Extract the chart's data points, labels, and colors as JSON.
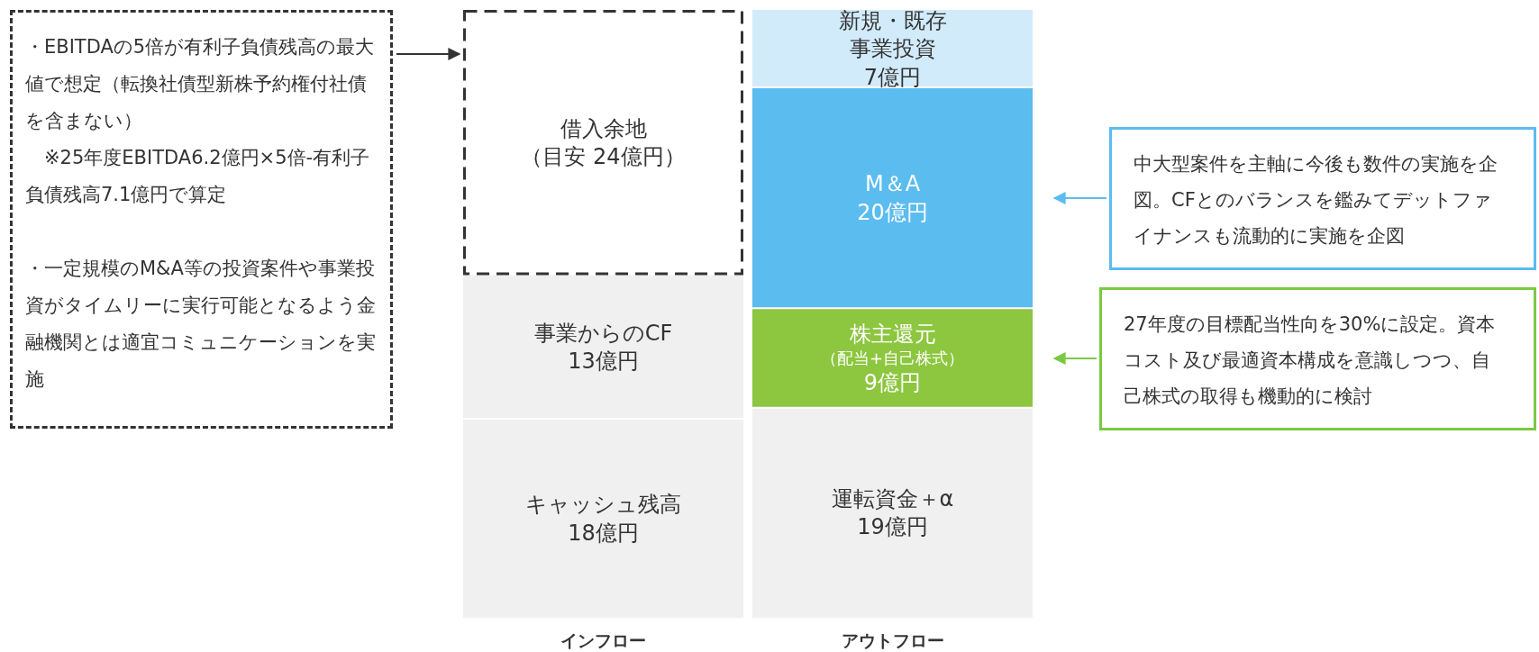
{
  "chart_data": {
    "type": "bar",
    "stacked": true,
    "categories": [
      "インフロー",
      "アウトフロー"
    ],
    "series": [
      {
        "name": "キャッシュ残高",
        "color": "#f0f0f0",
        "values": [
          18,
          null
        ],
        "value_labels": [
          "18億円",
          null
        ]
      },
      {
        "name": "事業からのCF",
        "color": "#f0f0f0",
        "values": [
          13,
          null
        ],
        "value_labels": [
          "13億円",
          null
        ]
      },
      {
        "name": "借入余地",
        "color": "#ffffff",
        "line_style": "dashed",
        "values": [
          24,
          null
        ],
        "value_labels": [
          "（目安 24億円）",
          null
        ]
      },
      {
        "name": "運転資金＋α",
        "color": "#f0f0f0",
        "values": [
          null,
          19
        ],
        "value_labels": [
          null,
          "19億円"
        ]
      },
      {
        "name": "株主還元",
        "color": "#8dc63f",
        "values": [
          null,
          9
        ],
        "value_labels": [
          null,
          "（配当+自己株式）\n9億円"
        ]
      },
      {
        "name": "M＆A",
        "color": "#5bbcef",
        "values": [
          null,
          20
        ],
        "value_labels": [
          null,
          "20億円"
        ]
      },
      {
        "name": "新規・既存事業投資",
        "color": "#d2ebfb",
        "values": [
          null,
          7
        ],
        "value_labels": [
          null,
          "7億円"
        ]
      }
    ],
    "annotations": [
      "・EBITDAの5倍が有利子負債残高の最大値で想定（転換社債型新株予約権付社債を含まない）\n　※25年度EBITDA6.2億円×5倍-有利子負債残高7.1億円で算定",
      "・一定規模のM&A等の投資案件や事業投資がタイムリーに実行可能となるよう金融機関とは適宜コミュニケーションを実施",
      "中大型案件を主軸に今後も数件の実施を企図。CFとのバランスを鑑みてデットファイナンスも流動的に実施を企図",
      "27年度の目標配当性向を30%に設定。資本コスト及び最適資本構成を意識しつつ、自己株式の取得も機動的に検討"
    ]
  }
}
